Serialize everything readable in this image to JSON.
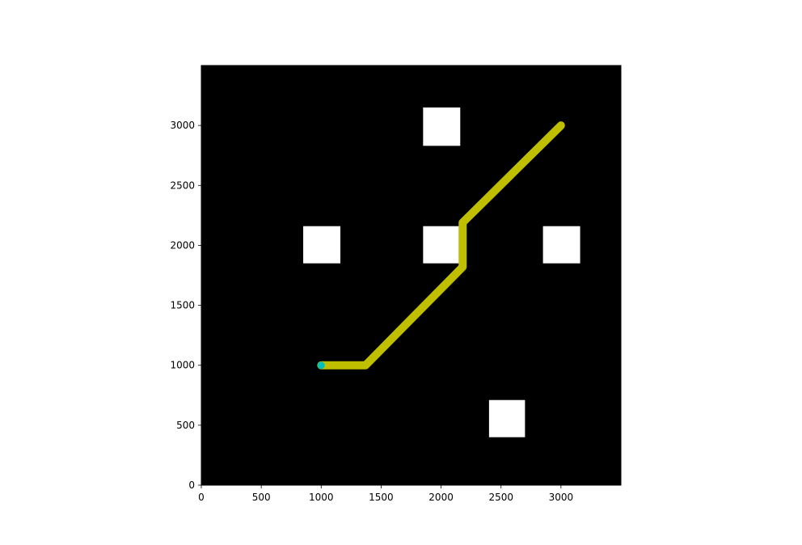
{
  "chart_data": {
    "type": "line",
    "title": "",
    "xlabel": "",
    "ylabel": "",
    "xlim": [
      0,
      3500
    ],
    "ylim": [
      0,
      3500
    ],
    "grid": false,
    "legend": "none",
    "x_ticks": [
      0,
      500,
      1000,
      1500,
      2000,
      2500,
      3000
    ],
    "y_ticks": [
      0,
      500,
      1000,
      1500,
      2000,
      2500,
      3000
    ],
    "background_map": {
      "free_space_color": "#000000",
      "obstacle_color": "#ffffff",
      "obstacles": [
        {
          "x_range": [
            1850,
            2160
          ],
          "y_range": [
            2830,
            3150
          ]
        },
        {
          "x_range": [
            850,
            1160
          ],
          "y_range": [
            1850,
            2160
          ]
        },
        {
          "x_range": [
            1850,
            2160
          ],
          "y_range": [
            1850,
            2160
          ]
        },
        {
          "x_range": [
            2850,
            3160
          ],
          "y_range": [
            1850,
            2160
          ]
        },
        {
          "x_range": [
            2400,
            2700
          ],
          "y_range": [
            400,
            710
          ]
        }
      ]
    },
    "series": [
      {
        "color": "#bfbf00",
        "x": [
          1000,
          1370,
          2180,
          2180,
          3000
        ],
        "y": [
          1000,
          1000,
          1820,
          2190,
          3000
        ]
      }
    ],
    "markers": [
      {
        "x": 1000,
        "y": 1000,
        "color": "#00bfbf"
      }
    ]
  }
}
